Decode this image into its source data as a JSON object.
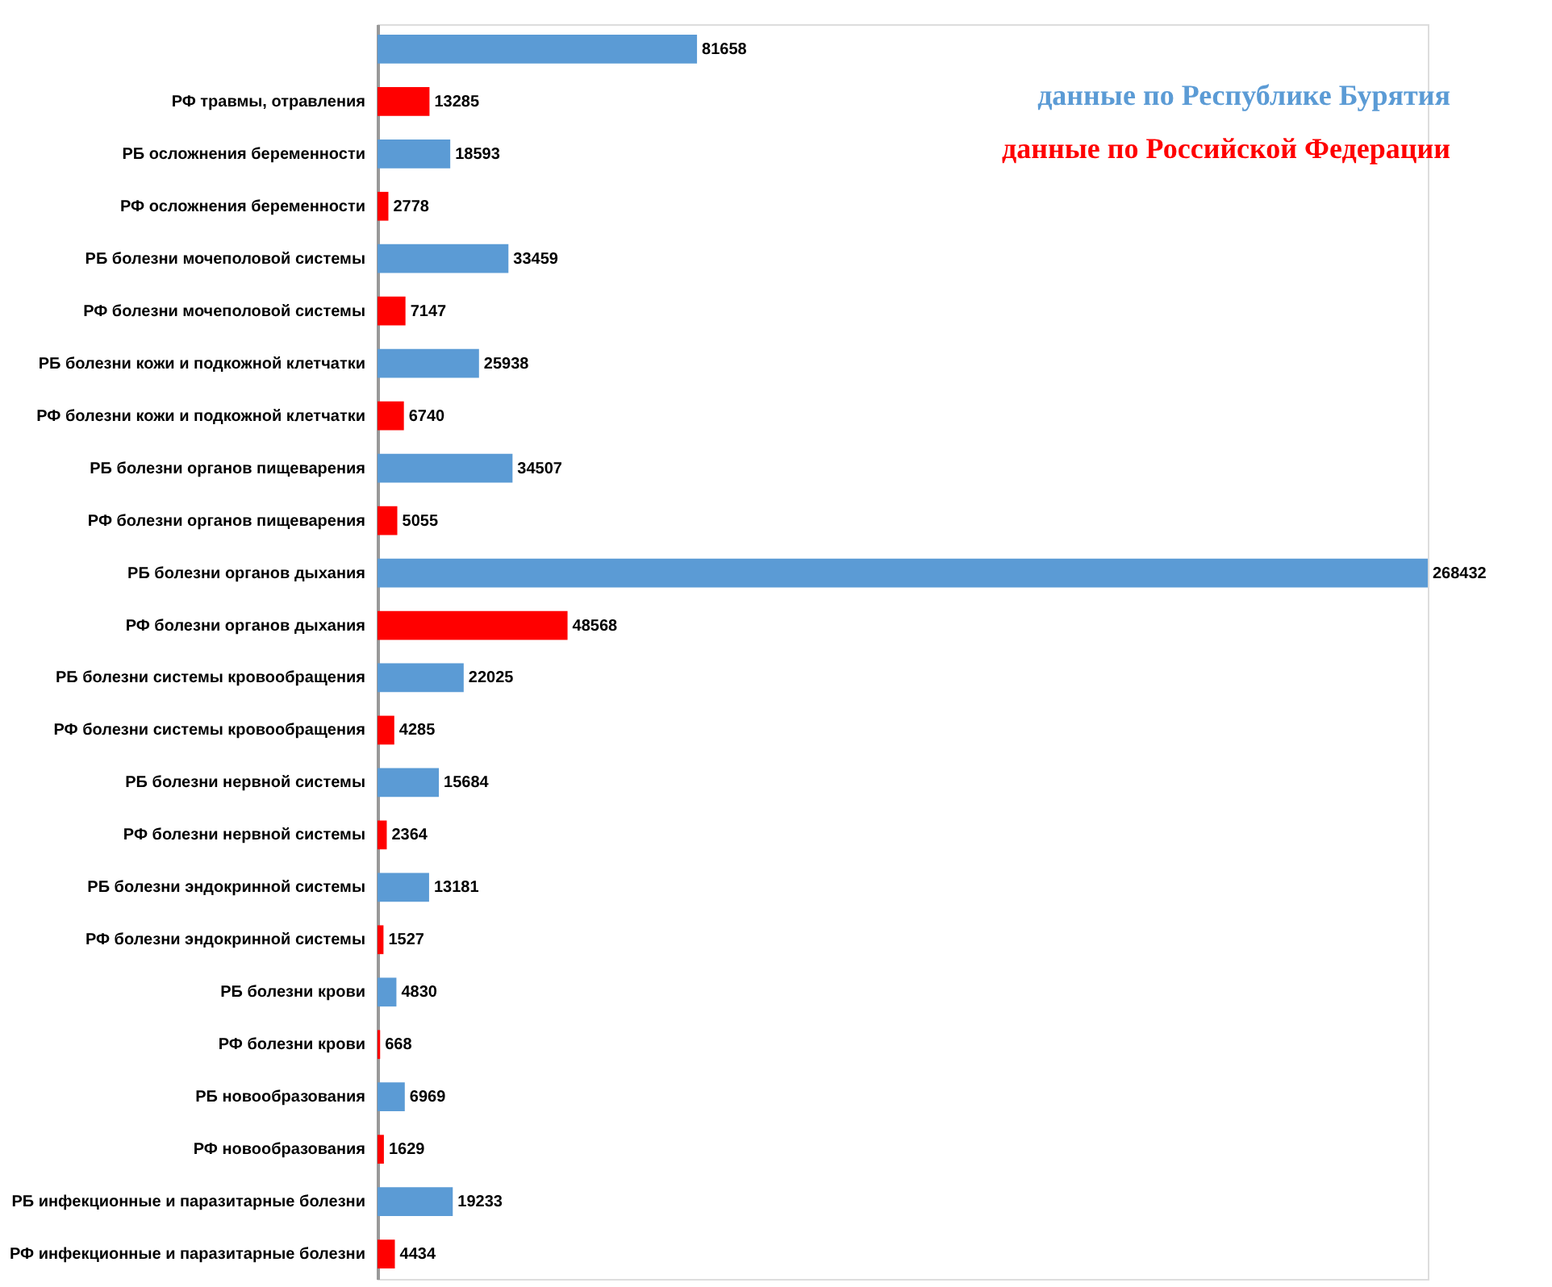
{
  "chart_data": {
    "type": "bar",
    "orientation": "horizontal",
    "data_labels": true,
    "legend": "top right",
    "grid": false,
    "categories": [
      null,
      "РФ травмы, отравления",
      "РБ осложнения беременности",
      "РФ осложнения беременности",
      "РБ болезни мочеполовой системы",
      "РФ болезни мочеполовой системы",
      "РБ болезни кожи и подкожной клетчатки",
      "РФ болезни кожи и подкожной клетчатки",
      "РБ болезни органов пищеварения",
      "РФ болезни органов пищеварения",
      "РБ болезни органов дыхания",
      "РФ болезни органов дыхания",
      "РБ болезни системы кровообращения",
      "РФ болезни системы кровообращения",
      "РБ болезни нервной системы",
      "РФ болезни нервной системы",
      "РБ болезни эндокринной системы",
      "РФ болезни эндокринной системы",
      "РБ болезни крови",
      "РФ болезни крови",
      "РБ новообразования",
      "РФ новообразования",
      "РБ инфекционные и паразитарные болезни",
      "РФ инфекционные и паразитарные болезни"
    ],
    "series": [
      {
        "name": "данные по Республике Бурятия",
        "color": "#5b9bd5",
        "values": [
          81658,
          null,
          18593,
          null,
          33459,
          null,
          25938,
          null,
          34507,
          null,
          268432,
          null,
          22025,
          null,
          15684,
          null,
          13181,
          null,
          4830,
          null,
          6969,
          null,
          19233,
          null
        ]
      },
      {
        "name": "данные по Российской Федерации",
        "color": "#ff0000",
        "values": [
          null,
          13285,
          null,
          2778,
          null,
          7147,
          null,
          6740,
          null,
          5055,
          null,
          48568,
          null,
          4285,
          null,
          2364,
          null,
          1527,
          null,
          668,
          null,
          1629,
          null,
          4434
        ]
      }
    ]
  }
}
